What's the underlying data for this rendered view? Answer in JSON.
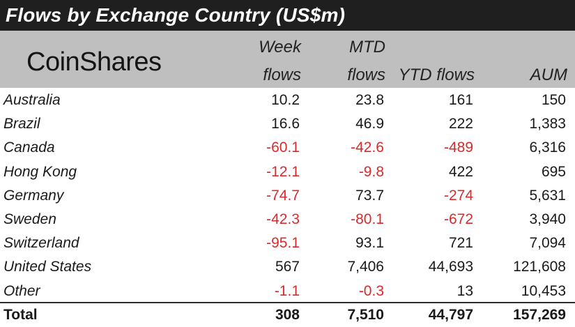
{
  "title": "Flows by Exchange Country (US$m)",
  "logo": "CoinShares",
  "headers": {
    "week_line1": "Week",
    "week_line2": "flows",
    "mtd_line1": "MTD",
    "mtd_line2": "flows",
    "ytd": "YTD flows",
    "aum": "AUM"
  },
  "colors": {
    "negative": "#d92b2b",
    "header_bg": "#bfbfbf",
    "title_bg": "#1f1f1f"
  },
  "rows": [
    {
      "country": "Australia",
      "week": "10.2",
      "mtd": "23.8",
      "ytd": "161",
      "aum": "150"
    },
    {
      "country": "Brazil",
      "week": "16.6",
      "mtd": "46.9",
      "ytd": "222",
      "aum": "1,383"
    },
    {
      "country": "Canada",
      "week": "-60.1",
      "mtd": "-42.6",
      "ytd": "-489",
      "aum": "6,316"
    },
    {
      "country": "Hong Kong",
      "week": "-12.1",
      "mtd": "-9.8",
      "ytd": "422",
      "aum": "695"
    },
    {
      "country": "Germany",
      "week": "-74.7",
      "mtd": "73.7",
      "ytd": "-274",
      "aum": "5,631"
    },
    {
      "country": "Sweden",
      "week": "-42.3",
      "mtd": "-80.1",
      "ytd": "-672",
      "aum": "3,940"
    },
    {
      "country": "Switzerland",
      "week": "-95.1",
      "mtd": "93.1",
      "ytd": "721",
      "aum": "7,094"
    },
    {
      "country": "United States",
      "week": "567",
      "mtd": "7,406",
      "ytd": "44,693",
      "aum": "121,608"
    },
    {
      "country": "Other",
      "week": "-1.1",
      "mtd": "-0.3",
      "ytd": "13",
      "aum": "10,453"
    }
  ],
  "total": {
    "country": "Total",
    "week": "308",
    "mtd": "7,510",
    "ytd": "44,797",
    "aum": "157,269"
  }
}
